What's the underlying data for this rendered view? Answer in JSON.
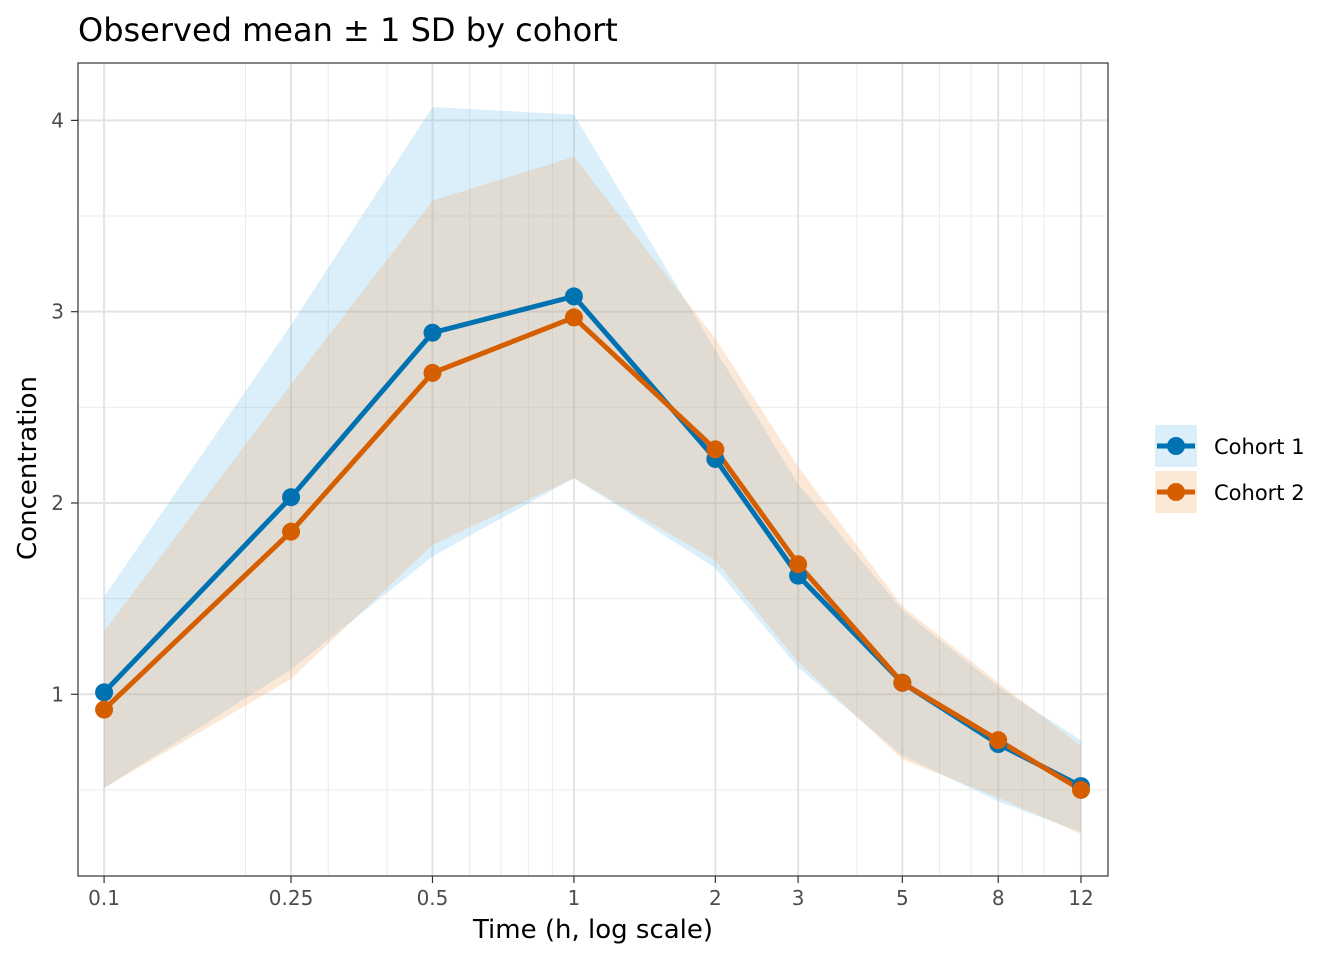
{
  "chart_data": {
    "type": "line",
    "title": "Observed mean ± 1 SD by cohort",
    "xlabel": "Time (h, log scale)",
    "ylabel": "Concentration",
    "x_scale": "log",
    "x": [
      0.1,
      0.25,
      0.5,
      1,
      2,
      3,
      5,
      8,
      12
    ],
    "x_tick_labels": [
      "0.1",
      "0.25",
      "0.5",
      "1",
      "2",
      "3",
      "5",
      "8",
      "12"
    ],
    "y_ticks": [
      1,
      2,
      3,
      4
    ],
    "y_tick_labels": [
      "1",
      "2",
      "3",
      "4"
    ],
    "ylim": [
      0.05,
      4.3
    ],
    "xlim": [
      0.088,
      13.7
    ],
    "grid": true,
    "legend_position": "right",
    "band": "mean ± 1 SD",
    "series": [
      {
        "name": "Cohort 1",
        "color": "#0072B2",
        "band_color": "#56B4E9",
        "mean": [
          1.01,
          2.03,
          2.89,
          3.08,
          2.23,
          1.62,
          1.06,
          0.74,
          0.52
        ],
        "lower": [
          0.51,
          1.13,
          1.72,
          2.13,
          1.66,
          1.14,
          0.68,
          0.44,
          0.28
        ],
        "upper": [
          1.51,
          2.93,
          4.07,
          4.03,
          2.8,
          2.1,
          1.44,
          1.04,
          0.76
        ]
      },
      {
        "name": "Cohort 2",
        "color": "#D55E00",
        "band_color": "#F4A261",
        "mean": [
          0.92,
          1.85,
          2.68,
          2.97,
          2.28,
          1.68,
          1.06,
          0.76,
          0.5
        ],
        "lower": [
          0.51,
          1.08,
          1.78,
          2.13,
          1.7,
          1.17,
          0.66,
          0.46,
          0.27
        ],
        "upper": [
          1.33,
          2.62,
          3.58,
          3.81,
          2.86,
          2.19,
          1.46,
          1.06,
          0.73
        ]
      }
    ]
  }
}
